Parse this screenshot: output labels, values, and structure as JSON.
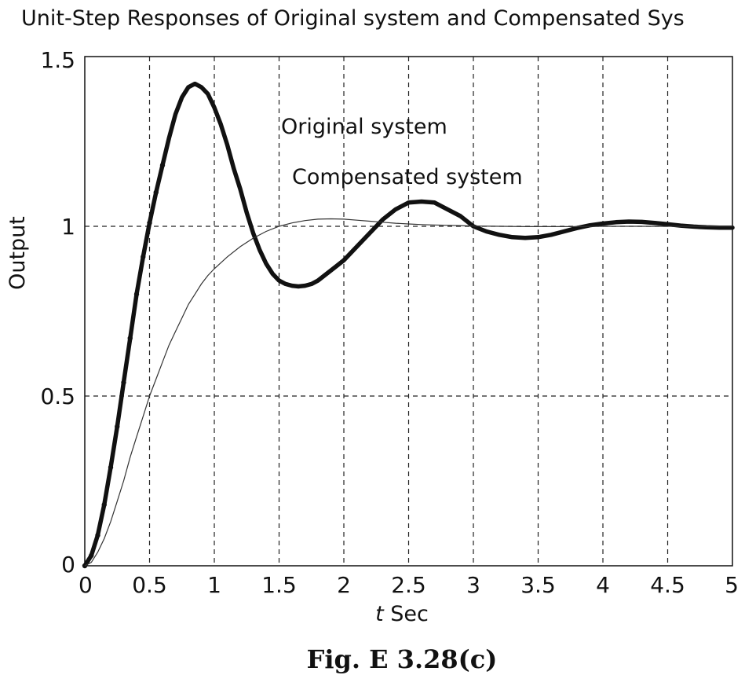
{
  "chart_data": {
    "type": "line",
    "title": "Unit-Step Responses of Original system and Compensated Sys",
    "xlabel_italic": "t",
    "xlabel_rest": " Sec",
    "ylabel": "Output",
    "caption": "Fig. E 3.28(c)",
    "xlim": [
      0,
      5
    ],
    "ylim": [
      0,
      1.5
    ],
    "xticks": [
      "0",
      "0.5",
      "1",
      "1.5",
      "2",
      "2.5",
      "3",
      "3.5",
      "4",
      "4.5",
      "5"
    ],
    "yticks": [
      "0",
      "0.5",
      "1",
      "1.5"
    ],
    "grid": true,
    "annotations": [
      "Original system",
      "Compensated system"
    ],
    "series": [
      {
        "name": "Original system",
        "style": "thick",
        "x": [
          0,
          0.05,
          0.1,
          0.15,
          0.2,
          0.25,
          0.3,
          0.35,
          0.4,
          0.45,
          0.5,
          0.55,
          0.6,
          0.65,
          0.7,
          0.75,
          0.8,
          0.85,
          0.9,
          0.95,
          1.0,
          1.05,
          1.1,
          1.15,
          1.2,
          1.25,
          1.3,
          1.35,
          1.4,
          1.45,
          1.5,
          1.55,
          1.6,
          1.65,
          1.7,
          1.75,
          1.8,
          1.85,
          1.9,
          1.95,
          2.0,
          2.1,
          2.2,
          2.3,
          2.4,
          2.5,
          2.6,
          2.7,
          2.8,
          2.9,
          3.0,
          3.1,
          3.2,
          3.3,
          3.4,
          3.5,
          3.6,
          3.7,
          3.8,
          3.9,
          4.0,
          4.1,
          4.2,
          4.3,
          4.4,
          4.5,
          4.6,
          4.7,
          4.8,
          4.9,
          5.0
        ],
        "y": [
          0,
          0.03,
          0.09,
          0.18,
          0.29,
          0.41,
          0.54,
          0.67,
          0.8,
          0.91,
          1.01,
          1.1,
          1.18,
          1.26,
          1.33,
          1.38,
          1.41,
          1.42,
          1.41,
          1.39,
          1.35,
          1.3,
          1.24,
          1.17,
          1.11,
          1.04,
          0.98,
          0.93,
          0.89,
          0.86,
          0.84,
          0.83,
          0.825,
          0.823,
          0.825,
          0.83,
          0.84,
          0.855,
          0.87,
          0.885,
          0.9,
          0.94,
          0.98,
          1.02,
          1.05,
          1.07,
          1.073,
          1.07,
          1.05,
          1.03,
          1.0,
          0.985,
          0.975,
          0.968,
          0.966,
          0.968,
          0.975,
          0.985,
          0.995,
          1.003,
          1.008,
          1.012,
          1.014,
          1.013,
          1.01,
          1.006,
          1.002,
          0.999,
          0.997,
          0.996,
          0.996
        ]
      },
      {
        "name": "Compensated system",
        "style": "thin",
        "x": [
          0,
          0.05,
          0.1,
          0.15,
          0.2,
          0.25,
          0.3,
          0.35,
          0.4,
          0.45,
          0.5,
          0.55,
          0.6,
          0.65,
          0.7,
          0.75,
          0.8,
          0.85,
          0.9,
          0.95,
          1.0,
          1.1,
          1.2,
          1.3,
          1.4,
          1.5,
          1.6,
          1.7,
          1.8,
          1.9,
          2.0,
          2.1,
          2.2,
          2.3,
          2.4,
          2.5,
          2.6,
          2.7,
          2.8,
          2.9,
          3.0,
          3.2,
          3.4,
          3.6,
          3.8,
          4.0,
          4.2,
          4.4,
          4.6,
          4.8,
          5.0
        ],
        "y": [
          0,
          0.01,
          0.04,
          0.08,
          0.13,
          0.19,
          0.25,
          0.32,
          0.38,
          0.44,
          0.5,
          0.55,
          0.6,
          0.65,
          0.69,
          0.73,
          0.77,
          0.8,
          0.83,
          0.855,
          0.875,
          0.91,
          0.94,
          0.965,
          0.985,
          1.0,
          1.01,
          1.017,
          1.021,
          1.022,
          1.021,
          1.018,
          1.015,
          1.012,
          1.009,
          1.007,
          1.005,
          1.004,
          1.003,
          1.002,
          1.001,
          1.0,
          0.999,
          0.999,
          0.999,
          1.0,
          1.0,
          1.0,
          1.0,
          1.0,
          1.0
        ]
      }
    ]
  }
}
